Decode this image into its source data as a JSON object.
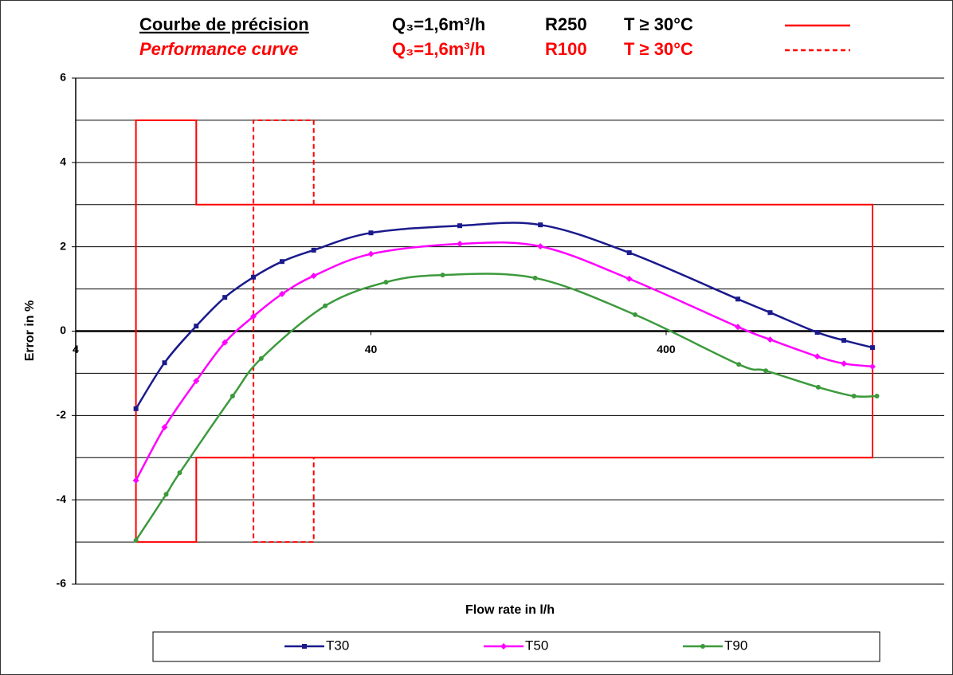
{
  "chart_data": {
    "type": "line",
    "x_label": "Flow rate in l/h",
    "y_label": "Error in %",
    "xlim": [
      4,
      3500
    ],
    "x_log": true,
    "xticks": [
      4,
      40,
      400
    ],
    "ylim": [
      -6,
      6
    ],
    "yticks": [
      -6,
      -4,
      -2,
      0,
      2,
      4,
      6
    ],
    "y_minor_grid": [
      -5,
      -3,
      -1,
      1,
      3,
      5
    ],
    "grid": true,
    "envelopes": [
      {
        "title": "Courbe de précision",
        "flow": "Q₃=1,6m³/h",
        "ratio": "R250",
        "temperature": "T ≥ 30°C",
        "text_color": "#000000",
        "color": "#ff0000",
        "dashed": false,
        "x": [
          6.4,
          6.4,
          10.24,
          10.24,
          2000,
          2000,
          10.24,
          10.24,
          6.4
        ],
        "y": [
          -5,
          5,
          5,
          3,
          3,
          -3,
          -3,
          -5,
          -5
        ]
      },
      {
        "title": "Performance curve",
        "flow": "Q₃=1,6m³/h",
        "ratio": "R100",
        "temperature": "T ≥ 30°C",
        "text_color": "#ff0000",
        "color": "#ff0000",
        "dashed": true,
        "x": [
          25.6,
          25.6,
          16,
          16,
          25.6,
          25.6
        ],
        "y": [
          3,
          5,
          5,
          -5,
          -5,
          -3
        ]
      }
    ],
    "series": [
      {
        "name": "T30",
        "color": "#1a1a8c",
        "marker": "square",
        "x": [
          6.4,
          8,
          10.24,
          12.8,
          16,
          20,
          25.6,
          40,
          80,
          150,
          300,
          700,
          900,
          1300,
          1600,
          2000
        ],
        "values": [
          -1.84,
          -0.75,
          0.12,
          0.8,
          1.28,
          1.65,
          1.92,
          2.33,
          2.5,
          2.52,
          1.86,
          0.76,
          0.44,
          -0.03,
          -0.22,
          -0.39
        ]
      },
      {
        "name": "T50",
        "color": "#ff00ff",
        "marker": "diamond",
        "x": [
          6.4,
          8,
          10.24,
          12.8,
          16,
          20,
          25.6,
          40,
          80,
          150,
          300,
          700,
          900,
          1300,
          1600,
          2000
        ],
        "values": [
          -3.54,
          -2.28,
          -1.18,
          -0.27,
          0.35,
          0.88,
          1.31,
          1.83,
          2.07,
          2.01,
          1.24,
          0.1,
          -0.2,
          -0.6,
          -0.77,
          -0.84
        ]
      },
      {
        "name": "T90",
        "color": "#3c9a3c",
        "marker": "circle",
        "x": [
          6.4,
          8.1,
          9,
          13.6,
          17,
          28,
          45,
          70,
          144,
          314,
          705,
          870,
          1310,
          1730,
          2070
        ],
        "values": [
          -4.96,
          -3.87,
          -3.36,
          -1.54,
          -0.65,
          0.6,
          1.16,
          1.33,
          1.26,
          0.39,
          -0.79,
          -0.94,
          -1.33,
          -1.54,
          -1.54
        ]
      }
    ]
  }
}
